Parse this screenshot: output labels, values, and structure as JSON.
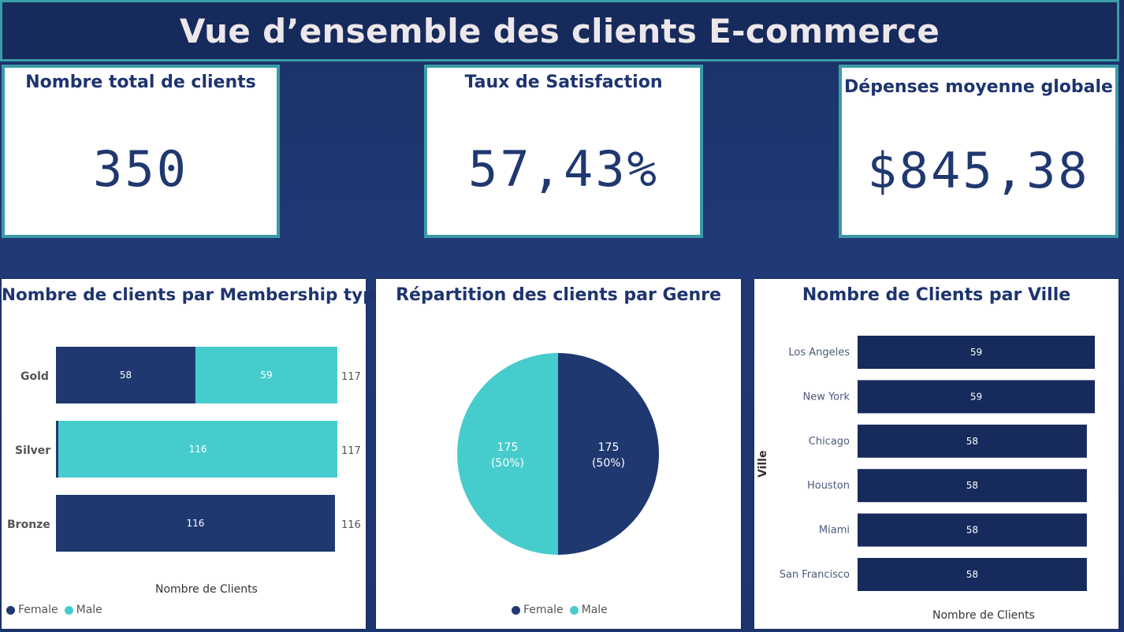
{
  "title": "Vue d’ensemble des clients E-commerce",
  "kpis": {
    "total_clients": {
      "title": "Nombre total de clients",
      "value": "350"
    },
    "satisfaction": {
      "title": "Taux de Satisfaction",
      "value": "57,43%"
    },
    "avg_spend": {
      "title": "Dépenses moyenne globale",
      "value": "$845,38"
    }
  },
  "colors": {
    "female": "#1f3870",
    "male": "#47cccd",
    "city_bar": "#172a5c"
  },
  "chart_data": [
    {
      "type": "bar",
      "orientation": "horizontal",
      "stacked": true,
      "title": "Nombre de clients par Membership type",
      "xlabel": "Nombre de Clients",
      "categories": [
        "Gold",
        "Silver",
        "Bronze"
      ],
      "series": [
        {
          "name": "Female",
          "values": [
            58,
            1,
            116
          ]
        },
        {
          "name": "Male",
          "values": [
            59,
            116,
            0
          ]
        }
      ],
      "value_labels": [
        [
          "58",
          "59"
        ],
        [
          "",
          "116"
        ],
        [
          "116",
          ""
        ]
      ],
      "totals": [
        117,
        117,
        116
      ],
      "xlim": [
        0,
        120
      ],
      "legend": {
        "position": "bottom-left",
        "items": [
          "Female",
          "Male"
        ]
      }
    },
    {
      "type": "pie",
      "title": "Répartition des clients par Genre",
      "labels": [
        "Female",
        "Male"
      ],
      "values": [
        175,
        175
      ],
      "slice_labels": [
        [
          "175",
          "(50%)"
        ],
        [
          "175",
          "(50%)"
        ]
      ],
      "legend": {
        "position": "bottom",
        "items": [
          "Female",
          "Male"
        ]
      }
    },
    {
      "type": "bar",
      "orientation": "horizontal",
      "title": "Nombre de Clients par Ville",
      "xlabel": "Nombre de Clients",
      "ylabel": "Ville",
      "categories": [
        "Los Angeles",
        "New York",
        "Chicago",
        "Houston",
        "Miami",
        "San Francisco"
      ],
      "values": [
        59,
        59,
        58,
        58,
        58,
        58
      ],
      "xlim": [
        0,
        59
      ]
    }
  ]
}
